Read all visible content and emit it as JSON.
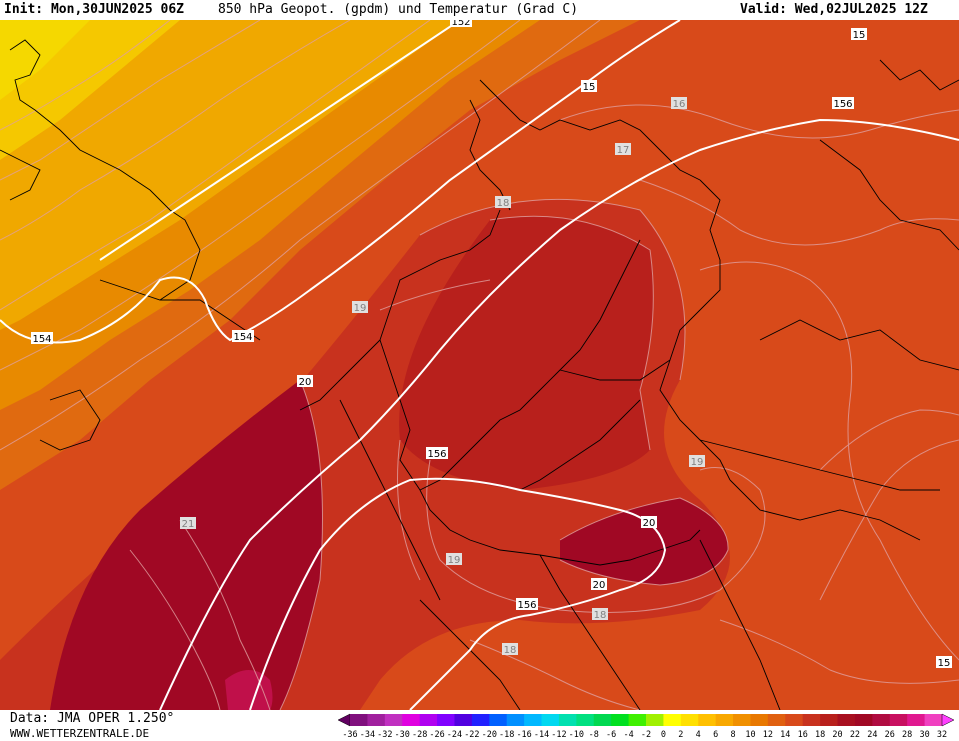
{
  "header": {
    "init": "Init: Mon,30JUN2025 06Z",
    "title": "850 hPa Geopot. (gpdm) und Temperatur (Grad C)",
    "valid": "Valid: Wed,02JUL2025 12Z"
  },
  "footer": {
    "data_source": "Data: JMA OPER 1.250°",
    "website": "WWW.WETTERZENTRALE.DE"
  },
  "geopotential_labels": [
    "152",
    "154",
    "154",
    "156",
    "156",
    "156"
  ],
  "temperature_labels": [
    "15",
    "15",
    "16",
    "17",
    "18",
    "19",
    "19",
    "19",
    "20",
    "20",
    "20",
    "21",
    "18",
    "18",
    "15"
  ],
  "colors": {
    "yellow": "#f5d000",
    "orange_light": "#f0a800",
    "orange": "#e88a00",
    "orange_dark": "#e06a10",
    "red_orange": "#d84a1a",
    "red": "#c8321e",
    "dark_red": "#b01a1c",
    "crimson": "#a00824",
    "pink_core": "#c0104a"
  },
  "colorscale": {
    "ticks": [
      "-36",
      "-34",
      "-32",
      "-30",
      "-28",
      "-26",
      "-24",
      "-22",
      "-20",
      "-18",
      "-16",
      "-14",
      "-12",
      "-10",
      "-8",
      "-6",
      "-4",
      "-2",
      "0",
      "2",
      "4",
      "6",
      "8",
      "10",
      "12",
      "14",
      "16",
      "18",
      "20",
      "22",
      "24",
      "26",
      "28",
      "30",
      "32"
    ],
    "colors": [
      "#600060",
      "#80107e",
      "#a0209e",
      "#c030c0",
      "#e000e0",
      "#b000f0",
      "#8000ff",
      "#5000e0",
      "#2020ff",
      "#0060ff",
      "#0090ff",
      "#00b8ff",
      "#00d8f0",
      "#00e0b0",
      "#00e080",
      "#00d850",
      "#00e020",
      "#40f000",
      "#a0f000",
      "#ffff00",
      "#ffe000",
      "#ffc000",
      "#f8a800",
      "#f09000",
      "#e87800",
      "#e06010",
      "#d84a1a",
      "#c8321e",
      "#b8201c",
      "#a81020",
      "#a00824",
      "#b00c40",
      "#c81060",
      "#e01890",
      "#f040c0",
      "#ff40ff"
    ]
  }
}
